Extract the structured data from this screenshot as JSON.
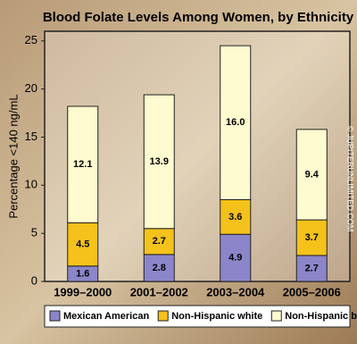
{
  "chart_data": {
    "type": "stacked_bar",
    "title": "Blood Folate Levels Among Women, by Ethnicity",
    "y_label": "Percentage <140 ng/mL",
    "watermark": "© JUPITERUNLIMITED.COM",
    "categories": [
      "1999–2000",
      "2001–2002",
      "2003–2004",
      "2005–2006"
    ],
    "series": [
      {
        "name": "Mexican American",
        "color": "#8b86c9",
        "values": [
          1.6,
          2.8,
          4.9,
          2.7
        ]
      },
      {
        "name": "Non-Hispanic white",
        "color": "#f4c21a",
        "values": [
          4.5,
          2.7,
          3.6,
          3.7
        ]
      },
      {
        "name": "Non-Hispanic black",
        "color": "#fdfbcf",
        "values": [
          12.1,
          13.9,
          16.0,
          9.4
        ],
        "value_labels": [
          "12.1",
          "13.9",
          "16.0",
          "9.4"
        ]
      }
    ],
    "ylim": [
      0,
      26
    ],
    "yticks": [
      0,
      5,
      10,
      15,
      20,
      25
    ],
    "legend": "bottom"
  }
}
